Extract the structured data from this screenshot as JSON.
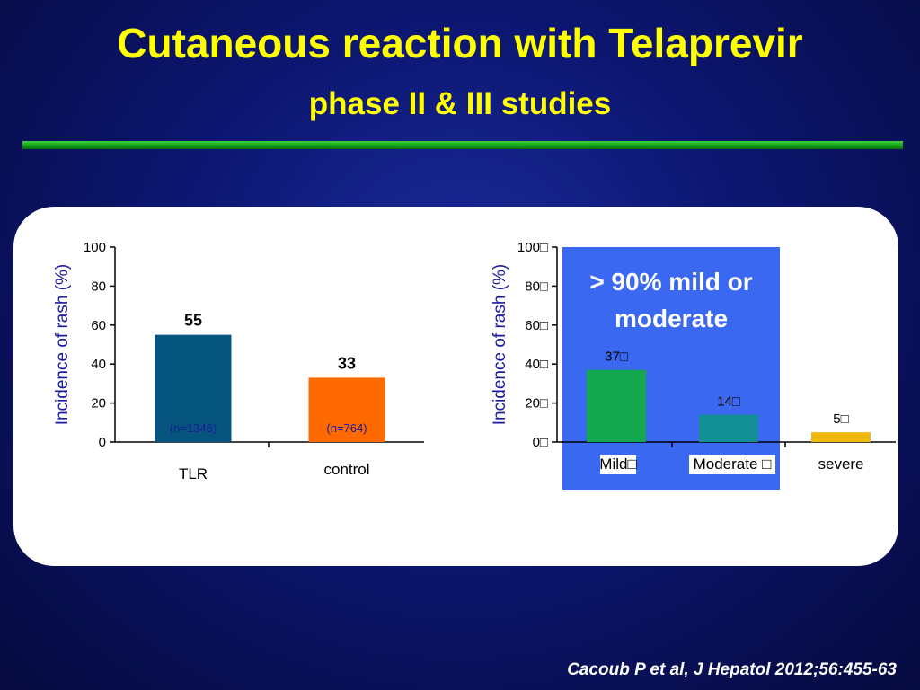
{
  "slide": {
    "title": "Cutaneous reaction with Telaprevir",
    "subtitle": "phase II & III studies",
    "citation": "Cacoub P et al, J Hepatol 2012;56:455-63",
    "callout": {
      "line1": "> 90% mild or",
      "line2": "moderate"
    }
  },
  "colors": {
    "title": "#ffff00",
    "divider": "#13a313",
    "callout": "#3b68f0",
    "axis_label": "#1a1a9c"
  },
  "chart_data": [
    {
      "type": "bar",
      "title": "",
      "xlabel": "",
      "ylabel": "Incidence of rash (%)",
      "ylim": [
        0,
        100
      ],
      "yticks": [
        0,
        20,
        40,
        60,
        80,
        100
      ],
      "ytick_labels": [
        "0",
        "20",
        "40",
        "60",
        "80",
        "100"
      ],
      "categories": [
        "TLR",
        "control"
      ],
      "values": [
        55,
        33
      ],
      "value_labels": [
        "55",
        "33"
      ],
      "annotations": [
        "(n=1346)",
        "(n=764)"
      ],
      "bar_colors": [
        "#06557e",
        "#ff6a00"
      ]
    },
    {
      "type": "bar",
      "title": "",
      "xlabel": "",
      "ylabel": "Incidence of rash (%)",
      "ylim": [
        0,
        100
      ],
      "yticks": [
        0,
        20,
        40,
        60,
        80,
        100
      ],
      "ytick_labels": [
        "0□",
        "20□",
        "40□",
        "60□",
        "80□",
        "100□"
      ],
      "categories": [
        "Mild□",
        "Moderate □",
        "severe"
      ],
      "values": [
        37,
        14,
        5
      ],
      "value_labels": [
        "37□",
        "14□",
        "5□"
      ],
      "bar_colors": [
        "#13a850",
        "#138f96",
        "#f2b90c"
      ]
    }
  ]
}
